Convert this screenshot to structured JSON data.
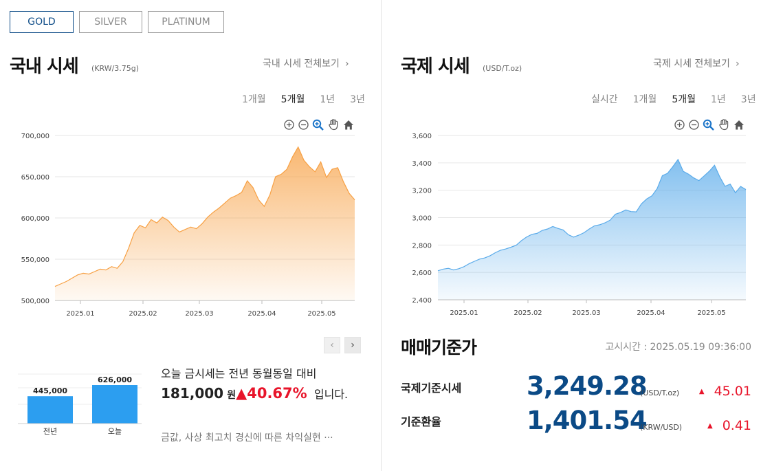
{
  "tabs": [
    {
      "label": "GOLD",
      "active": true
    },
    {
      "label": "SILVER",
      "active": false
    },
    {
      "label": "PLATINUM",
      "active": false
    }
  ],
  "domestic": {
    "title": "국내 시세",
    "unit": "(KRW/3.75g)",
    "link": "국내 시세 전체보기",
    "periods": [
      "1개월",
      "5개월",
      "1년",
      "3년"
    ],
    "active_period": "5개월"
  },
  "international": {
    "title": "국제 시세",
    "unit": "(USD/T.oz)",
    "link": "국제 시세 전체보기",
    "periods": [
      "실시간",
      "1개월",
      "5개월",
      "1년",
      "3년"
    ],
    "active_period": "5개월"
  },
  "tool_icons": [
    "zoom-in-icon",
    "zoom-out-icon",
    "zoom-select-icon",
    "pan-hand-icon",
    "reset-home-icon"
  ],
  "colors": {
    "brand": "#0b4a86",
    "domestic_line": "#f7a043",
    "international_line": "#5aabea",
    "bar": "#2c9ef0",
    "up": "#e8142a"
  },
  "chart_data": [
    {
      "type": "area",
      "series": [
        {
          "values": [
            517000,
            520000,
            523000,
            527000,
            531000,
            533000,
            532000,
            535000,
            538000,
            537000,
            541000,
            539000,
            547000,
            563000,
            582000,
            591000,
            588000,
            598000,
            594000,
            601000,
            597000,
            589000,
            583000,
            586000,
            589000,
            587000,
            593000,
            601000,
            607000,
            612000,
            618000,
            624000,
            627000,
            631000,
            645000,
            637000,
            622000,
            614000,
            628000,
            650000,
            653000,
            659000,
            674000,
            686000,
            670000,
            662000,
            656000,
            668000,
            649000,
            659000,
            661000,
            644000,
            630000,
            622000
          ]
        }
      ],
      "x_tick_labels": [
        "2025.01",
        "2025.02",
        "2025.03",
        "2025.04",
        "2025.05"
      ],
      "y_tick_labels": [
        "700,000",
        "650,000",
        "600,000",
        "550,000",
        "500,000"
      ],
      "ylim": [
        500000,
        700000
      ],
      "grid": true
    },
    {
      "type": "area",
      "series": [
        {
          "values": [
            2612,
            2624,
            2630,
            2618,
            2627,
            2642,
            2664,
            2681,
            2697,
            2706,
            2722,
            2744,
            2762,
            2771,
            2784,
            2798,
            2832,
            2859,
            2878,
            2885,
            2907,
            2917,
            2935,
            2921,
            2910,
            2875,
            2858,
            2872,
            2890,
            2917,
            2940,
            2948,
            2962,
            2982,
            3025,
            3038,
            3056,
            3044,
            3042,
            3101,
            3136,
            3159,
            3212,
            3307,
            3324,
            3372,
            3425,
            3338,
            3318,
            3290,
            3270,
            3305,
            3339,
            3382,
            3298,
            3229,
            3245,
            3182,
            3228,
            3205
          ]
        }
      ],
      "x_tick_labels": [
        "2025.01",
        "2025.02",
        "2025.03",
        "2025.04",
        "2025.05"
      ],
      "y_tick_labels": [
        "3,600",
        "3,400",
        "3,200",
        "3,000",
        "2,800",
        "2,600",
        "2,400"
      ],
      "ylim": [
        2400,
        3600
      ],
      "grid": true
    },
    {
      "type": "bar",
      "categories": [
        "전년",
        "오늘"
      ],
      "values": [
        445000,
        626000
      ],
      "value_labels": [
        "445,000",
        "626,000"
      ]
    }
  ],
  "summary": {
    "line1": "오늘 금시세는 전년 동월동일 대비",
    "amount": "181,000",
    "won": "원",
    "arrow": "▲",
    "percent": "40.67%",
    "tail": "입니다.",
    "headline": "금값, 사상 최고치 경신에 따른 차익실현 ···"
  },
  "reference": {
    "title": "매매기준가",
    "time": "고시시간 : 2025.05.19 09:36:00",
    "rows": [
      {
        "label": "국제기준시세",
        "value": "3,249.28",
        "unit": "(USD/T.oz)",
        "arrow": "▲",
        "change": "45.01"
      },
      {
        "label": "기준환율",
        "value": "1,401.54",
        "unit": "(KRW/USD)",
        "arrow": "▲",
        "change": "0.41"
      }
    ]
  },
  "pager": {
    "prev": "‹",
    "next": "›"
  }
}
